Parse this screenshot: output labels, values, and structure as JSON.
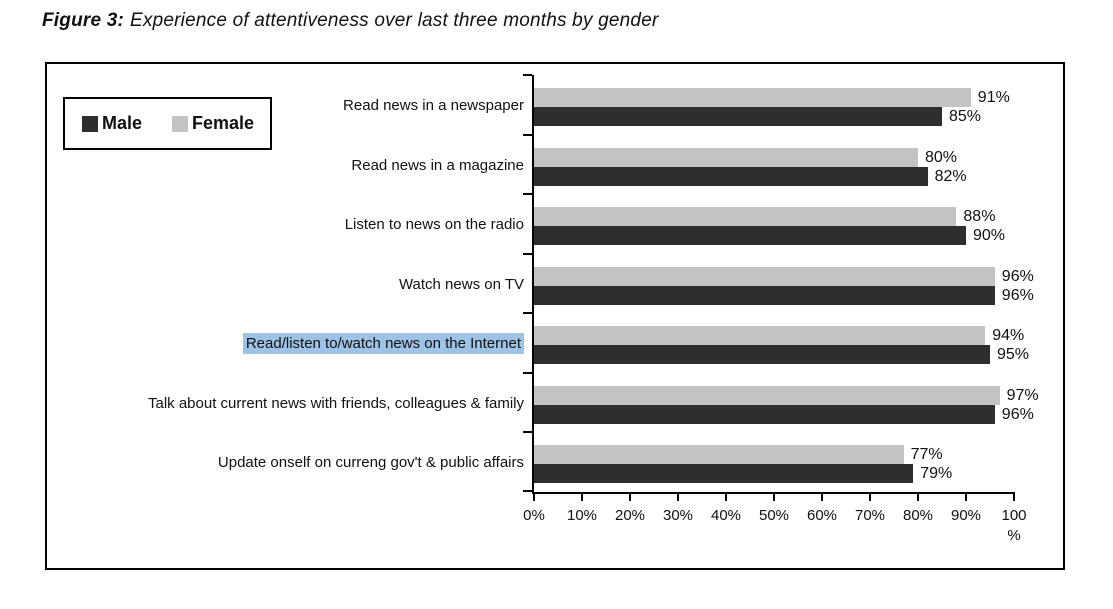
{
  "figure": {
    "label": "Figure 3:",
    "title": "Experience of attentiveness over last three months by gender"
  },
  "legend": {
    "items": [
      {
        "name": "Male",
        "color": "#2e2e2e"
      },
      {
        "name": "Female",
        "color": "#c3c3c3"
      }
    ]
  },
  "chart_data": {
    "type": "bar",
    "orientation": "horizontal",
    "title": "Experience of attentiveness over last three months by gender",
    "categories": [
      "Read news in a newspaper",
      "Read news in a magazine",
      "Listen to news on the radio",
      "Watch news on TV",
      "Read/listen to/watch news on the Internet",
      "Talk about current news with friends, colleagues & family",
      "Update onself on curreng gov't & public affairs"
    ],
    "highlighted_category_index": 4,
    "highlight_color": "#9dc3e6",
    "series": [
      {
        "name": "Female",
        "position": "top",
        "color": "#c3c3c3",
        "values": [
          91,
          80,
          88,
          96,
          94,
          97,
          77
        ]
      },
      {
        "name": "Male",
        "position": "bottom",
        "color": "#2e2e2e",
        "values": [
          85,
          82,
          90,
          96,
          95,
          96,
          79
        ]
      }
    ],
    "value_label_suffix": "%",
    "xlabel": "%",
    "xlim": [
      0,
      100
    ],
    "x_tick_labels": [
      "0%",
      "10%",
      "20%",
      "30%",
      "40%",
      "50%",
      "60%",
      "70%",
      "80%",
      "90%",
      "100\n%"
    ],
    "legend_position": "top-left",
    "grid": false,
    "colors": {
      "axis": "#000000",
      "frame_border": "#000000",
      "text": "#111111"
    }
  }
}
